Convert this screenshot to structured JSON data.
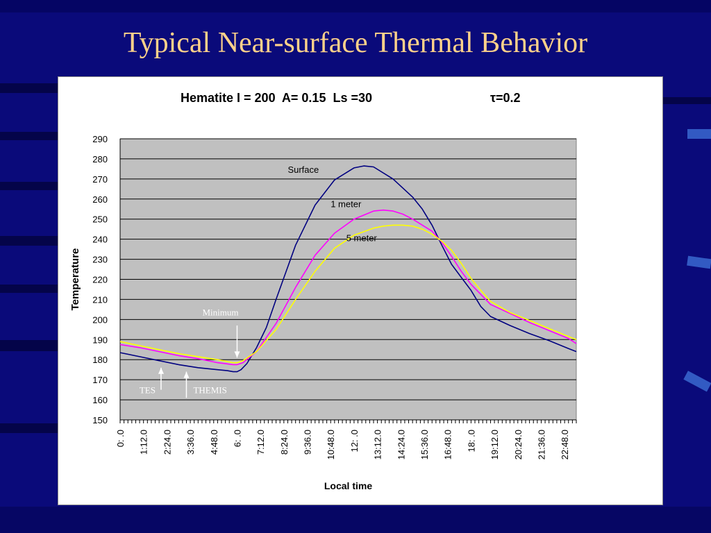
{
  "slide": {
    "title": "Typical Near-surface Thermal Behavior",
    "stray_mark": "."
  },
  "colors": {
    "background": "#0a0a7a",
    "title": "#ffd28a",
    "plot_area": "#c0c0c0",
    "surface": "#000080",
    "one_meter": "#ff00ff",
    "five_meter": "#ffff00",
    "annotation": "#ffffff"
  },
  "chart_data": {
    "type": "line",
    "title": "Hematite I = 200  A= 0.15  Ls =30",
    "title_right": "τ=0.2",
    "xlabel": "Local time",
    "ylabel": "Temperature",
    "ylim": [
      150,
      290
    ],
    "xlim": [
      0,
      23.4
    ],
    "yticks": [
      150,
      160,
      170,
      180,
      190,
      200,
      210,
      220,
      230,
      240,
      250,
      260,
      270,
      280,
      290
    ],
    "xtick_labels": [
      "0:  .0",
      "1:12.0",
      "2:24.0",
      "3:36.0",
      "4:48.0",
      "6:  .0",
      "7:12.0",
      "8:24.0",
      "9:36.0",
      "10:48.0",
      "12:  .0",
      "13:12.0",
      "14:24.0",
      "15:36.0",
      "16:48.0",
      "18:  .0",
      "19:12.0",
      "20:24.0",
      "21:36.0",
      "22:48.0"
    ],
    "xtick_hours": [
      0,
      1.2,
      2.4,
      3.6,
      4.8,
      6.0,
      7.2,
      8.4,
      9.6,
      10.8,
      12.0,
      13.2,
      14.4,
      15.6,
      16.8,
      18.0,
      19.2,
      20.4,
      21.6,
      22.8
    ],
    "grid": true,
    "series": [
      {
        "name": "Surface",
        "color": "#000080",
        "label_hour": 8.6,
        "label_temp": 273,
        "x": [
          0,
          1,
          2,
          3,
          4,
          5,
          5.5,
          5.8,
          6.0,
          6.2,
          6.5,
          7.0,
          7.5,
          8.0,
          9.0,
          10.0,
          11.0,
          12.0,
          12.5,
          13.0,
          14.0,
          15.0,
          15.5,
          16.0,
          16.5,
          17.0,
          17.5,
          18.0,
          18.5,
          19.0,
          20.0,
          21.0,
          22.0,
          23.0,
          23.4
        ],
        "y": [
          183.5,
          181.5,
          179.5,
          177.5,
          176.0,
          175.0,
          174.5,
          174.0,
          174.0,
          175.0,
          178.0,
          186.0,
          196.0,
          210.0,
          237.0,
          257.0,
          269.5,
          275.5,
          276.5,
          276.0,
          270.0,
          261.0,
          255.0,
          247.0,
          237.0,
          227.5,
          221.0,
          214.5,
          206.5,
          201.5,
          197.0,
          193.0,
          189.5,
          185.5,
          184.0
        ]
      },
      {
        "name": "1 meter",
        "color": "#ff00ff",
        "label_hour": 10.8,
        "label_temp": 256,
        "x": [
          0,
          1,
          2,
          3,
          4,
          5,
          5.8,
          6.0,
          6.3,
          7.0,
          8.0,
          9.0,
          10.0,
          11.0,
          12.0,
          13.0,
          13.5,
          14.0,
          14.5,
          15.0,
          16.0,
          16.5,
          17.0,
          17.5,
          18.0,
          19.0,
          20.0,
          21.0,
          22.0,
          23.0,
          23.4
        ],
        "y": [
          187.5,
          186.0,
          184.0,
          182.0,
          180.5,
          178.5,
          177.5,
          177.5,
          178.5,
          184.0,
          198.0,
          216.0,
          232.0,
          243.0,
          250.0,
          254.0,
          254.5,
          254.0,
          252.5,
          250.0,
          244.0,
          238.5,
          231.5,
          224.0,
          217.5,
          207.5,
          203.0,
          198.5,
          194.5,
          190.5,
          188.0
        ]
      },
      {
        "name": "5 meter",
        "color": "#ffff00",
        "label_hour": 11.6,
        "label_temp": 239,
        "x": [
          0,
          1,
          2,
          3,
          4,
          5,
          5.8,
          6.0,
          6.3,
          7.0,
          8.0,
          9.0,
          10.0,
          11.0,
          12.0,
          13.0,
          13.5,
          14.0,
          14.5,
          15.0,
          15.5,
          16.0,
          16.5,
          17.0,
          17.5,
          18.0,
          18.5,
          19.0,
          20.0,
          21.0,
          22.0,
          23.0,
          23.4
        ],
        "y": [
          189.0,
          187.0,
          185.0,
          183.0,
          181.5,
          180.0,
          178.5,
          178.5,
          179.5,
          184.0,
          195.0,
          210.0,
          224.0,
          235.5,
          242.0,
          245.5,
          246.5,
          247.0,
          247.0,
          246.5,
          245.0,
          242.5,
          239.0,
          234.5,
          228.0,
          220.5,
          214.5,
          209.0,
          203.5,
          199.5,
          195.5,
          191.5,
          190.0
        ]
      }
    ],
    "annotations": [
      {
        "text": "Minimum",
        "hour": 6.0,
        "label_temp": 202,
        "arrow_from_temp": 197,
        "arrow_to_temp": 181,
        "direction": "down"
      },
      {
        "text": "TES",
        "hour": 2.1,
        "label_temp": 165,
        "arrow_from_temp": 165,
        "arrow_to_temp": 176,
        "direction": "up"
      },
      {
        "text": "THEMIS",
        "hour": 3.4,
        "label_temp": 165,
        "arrow_from_temp": 161,
        "arrow_to_temp": 174,
        "direction": "up"
      }
    ]
  }
}
